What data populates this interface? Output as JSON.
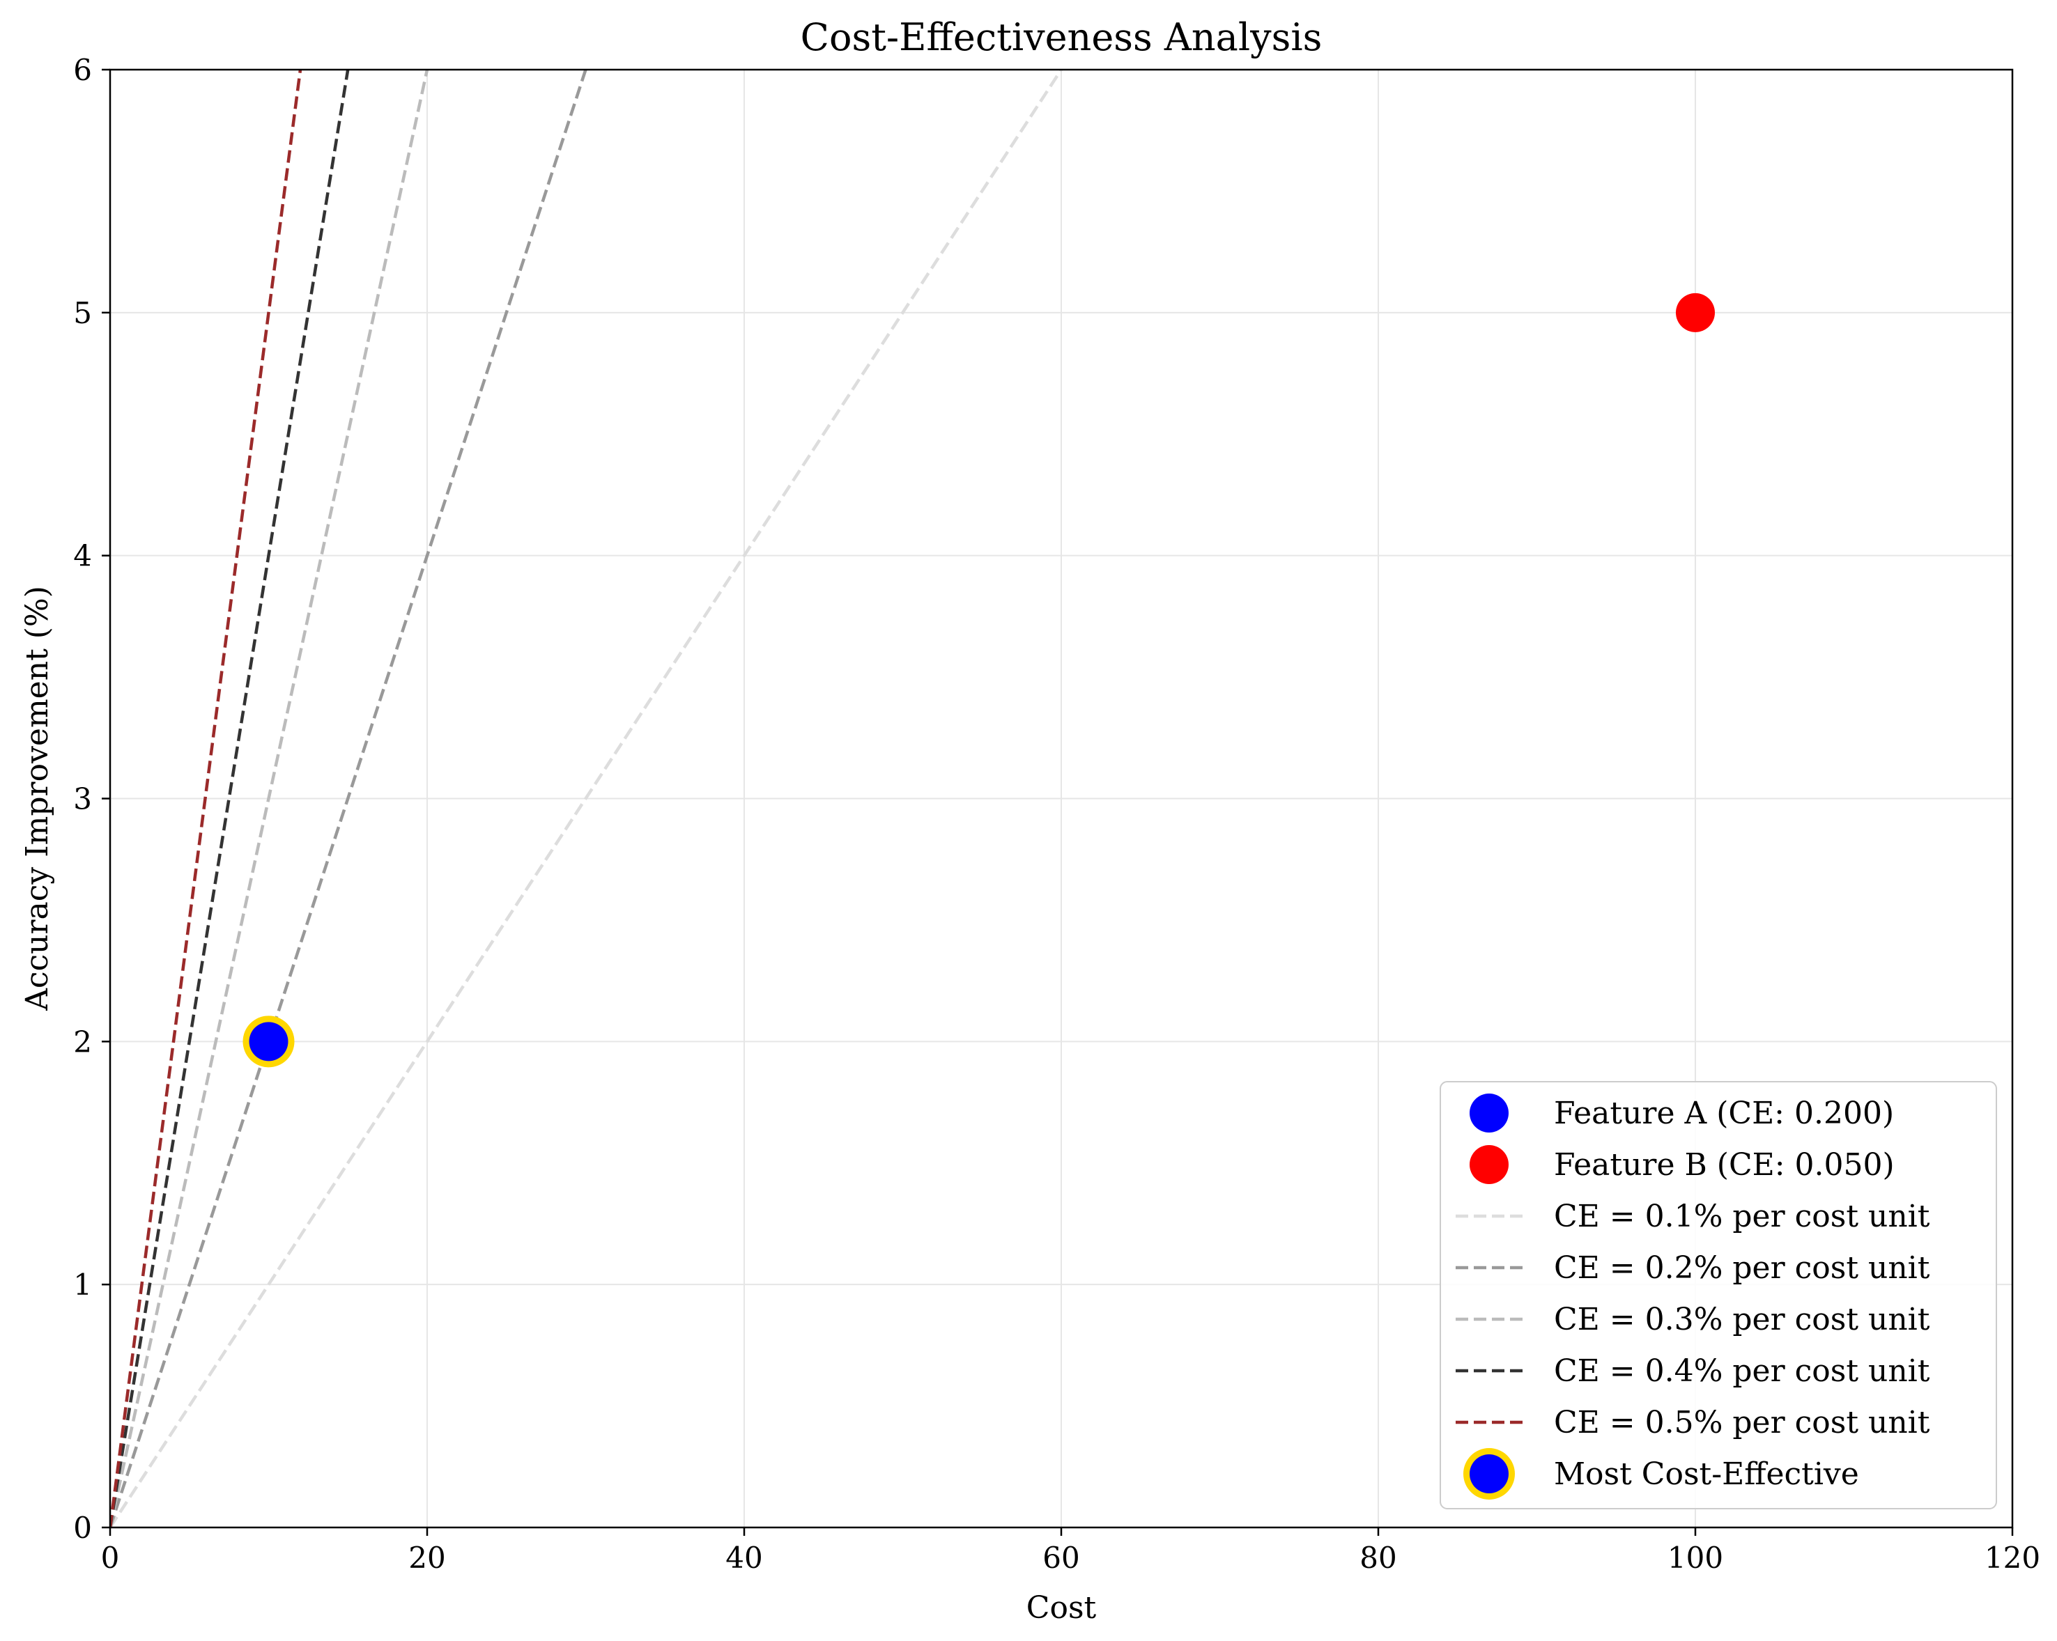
{
  "chart_data": {
    "type": "scatter",
    "title": "Cost-Effectiveness Analysis",
    "xlabel": "Cost",
    "ylabel": "Accuracy Improvement (%)",
    "xlim": [
      0,
      120
    ],
    "ylim": [
      0,
      6
    ],
    "x_ticks": [
      0,
      20,
      40,
      60,
      80,
      100,
      120
    ],
    "y_ticks": [
      0,
      1,
      2,
      3,
      4,
      5,
      6
    ],
    "grid": true,
    "legend_position": "lower-right",
    "points": [
      {
        "name": "Feature A (CE: 0.200)",
        "x": 10,
        "y": 2,
        "color": "#0000ff"
      },
      {
        "name": "Feature B (CE: 0.050)",
        "x": 100,
        "y": 5,
        "color": "#ff0000"
      }
    ],
    "reference_lines": [
      {
        "name": "CE = 0.1% per cost unit",
        "slope": 0.1,
        "color": "#dddddd"
      },
      {
        "name": "CE = 0.2% per cost unit",
        "slope": 0.2,
        "color": "#999999"
      },
      {
        "name": "CE = 0.3% per cost unit",
        "slope": 0.3,
        "color": "#bbbbbb"
      },
      {
        "name": "CE = 0.4% per cost unit",
        "slope": 0.4,
        "color": "#333333"
      },
      {
        "name": "CE = 0.5% per cost unit",
        "slope": 0.5,
        "color": "#9b2a2a"
      }
    ],
    "highlight": {
      "name": "Most Cost-Effective",
      "x": 10,
      "y": 2,
      "fill": "#0000ff",
      "edge": "#ffd700"
    }
  }
}
